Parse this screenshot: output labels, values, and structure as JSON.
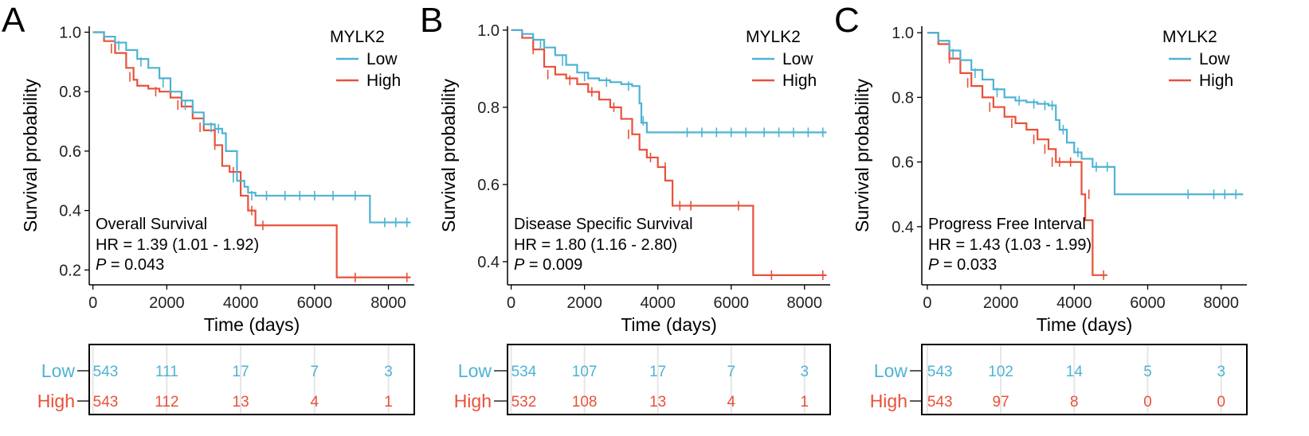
{
  "colors": {
    "low": "#4EB3D3",
    "high": "#E8513A"
  },
  "panels": [
    {
      "letter": "A",
      "legend_title": "MYLK2",
      "legend_low": "Low",
      "legend_high": "High",
      "annotation": {
        "title": "Overall Survival",
        "hr": "HR = 1.39 (1.01 -  1.92)",
        "p_label": "P",
        "p_value": " = 0.043"
      },
      "risk_table": {
        "row_labels": [
          "Low",
          "High"
        ],
        "low": [
          "543",
          "111",
          "17",
          "7",
          "3"
        ],
        "high": [
          "543",
          "112",
          "13",
          "4",
          "1"
        ]
      }
    },
    {
      "letter": "B",
      "legend_title": "MYLK2",
      "legend_low": "Low",
      "legend_high": "High",
      "annotation": {
        "title": "Disease Specific Survival",
        "hr": "HR = 1.80 (1.16 -  2.80)",
        "p_label": "P",
        "p_value": " = 0.009"
      },
      "risk_table": {
        "row_labels": [
          "Low",
          "High"
        ],
        "low": [
          "534",
          "107",
          "17",
          "7",
          "3"
        ],
        "high": [
          "532",
          "108",
          "13",
          "4",
          "1"
        ]
      }
    },
    {
      "letter": "C",
      "legend_title": "MYLK2",
      "legend_low": "Low",
      "legend_high": "High",
      "annotation": {
        "title": "Progress Free Interval",
        "hr": "HR = 1.43 (1.03 -  1.99)",
        "p_label": "P",
        "p_value": " = 0.033"
      },
      "risk_table": {
        "row_labels": [
          "Low",
          "High"
        ],
        "low": [
          "543",
          "102",
          "14",
          "5",
          "3"
        ],
        "high": [
          "543",
          "97",
          "8",
          "0",
          "0"
        ]
      }
    }
  ],
  "chart_data": [
    {
      "type": "line",
      "title": "Overall Survival",
      "xlabel": "Time (days)",
      "ylabel": "Survival probability",
      "xlim": [
        -100,
        8700
      ],
      "ylim": [
        0.15,
        1.02
      ],
      "xticks": [
        0,
        2000,
        4000,
        6000,
        8000
      ],
      "xtick_labels": [
        "0",
        "2000",
        "4000",
        "6000",
        "8000"
      ],
      "yticks": [
        0.2,
        0.4,
        0.6,
        0.8,
        1.0
      ],
      "ytick_labels": [
        "0.2",
        "0.4",
        "0.6",
        "0.8",
        "1.0"
      ],
      "series": [
        {
          "name": "Low",
          "x": [
            0,
            300,
            600,
            900,
            1200,
            1500,
            1800,
            2100,
            2400,
            2700,
            3000,
            3300,
            3500,
            3600,
            3900,
            4100,
            4200,
            4400,
            7500,
            8600
          ],
          "y": [
            1.0,
            0.985,
            0.965,
            0.94,
            0.91,
            0.88,
            0.845,
            0.8,
            0.77,
            0.73,
            0.69,
            0.675,
            0.66,
            0.6,
            0.5,
            0.48,
            0.46,
            0.45,
            0.36,
            0.36
          ],
          "censor_x": [
            700,
            1300,
            1900,
            2500,
            3200,
            3400,
            3800,
            4300,
            4700,
            5200,
            5600,
            6000,
            6500,
            7100,
            7900,
            8200,
            8500
          ],
          "censor_y": [
            0.955,
            0.9,
            0.83,
            0.755,
            0.68,
            0.675,
            0.51,
            0.45,
            0.45,
            0.45,
            0.45,
            0.45,
            0.45,
            0.45,
            0.36,
            0.36,
            0.36
          ]
        },
        {
          "name": "High",
          "x": [
            0,
            300,
            600,
            900,
            1100,
            1200,
            1500,
            1800,
            2100,
            2400,
            2700,
            3000,
            3300,
            3500,
            3700,
            4000,
            4200,
            4400,
            6500,
            6600,
            8600
          ],
          "y": [
            1.0,
            0.97,
            0.93,
            0.88,
            0.84,
            0.82,
            0.81,
            0.8,
            0.78,
            0.75,
            0.71,
            0.67,
            0.62,
            0.55,
            0.53,
            0.45,
            0.4,
            0.35,
            0.35,
            0.175,
            0.175
          ],
          "censor_x": [
            500,
            1000,
            1700,
            2300,
            2900,
            3300,
            3800,
            4300,
            4600,
            7100,
            8500
          ],
          "censor_y": [
            0.945,
            0.85,
            0.8,
            0.755,
            0.68,
            0.62,
            0.53,
            0.4,
            0.35,
            0.175,
            0.175
          ]
        }
      ]
    },
    {
      "type": "line",
      "title": "Disease Specific Survival",
      "xlabel": "Time (days)",
      "ylabel": "Survival probability",
      "xlim": [
        -100,
        8700
      ],
      "ylim": [
        0.34,
        1.01
      ],
      "xticks": [
        0,
        2000,
        4000,
        6000,
        8000
      ],
      "xtick_labels": [
        "0",
        "2000",
        "4000",
        "6000",
        "8000"
      ],
      "yticks": [
        0.4,
        0.6,
        0.8,
        1.0
      ],
      "ytick_labels": [
        "0.4",
        "0.6",
        "0.8",
        "1.0"
      ],
      "series": [
        {
          "name": "Low",
          "x": [
            0,
            300,
            600,
            900,
            1200,
            1500,
            1800,
            2100,
            2400,
            2700,
            3000,
            3300,
            3500,
            3550,
            3700,
            8600
          ],
          "y": [
            1.0,
            0.99,
            0.975,
            0.955,
            0.935,
            0.91,
            0.89,
            0.875,
            0.87,
            0.865,
            0.86,
            0.855,
            0.81,
            0.76,
            0.735,
            0.735
          ],
          "censor_x": [
            800,
            1400,
            2000,
            2600,
            3200,
            3600,
            4800,
            5200,
            5600,
            6000,
            6400,
            6900,
            7300,
            7700,
            8100,
            8500
          ],
          "censor_y": [
            0.96,
            0.92,
            0.88,
            0.865,
            0.855,
            0.765,
            0.735,
            0.735,
            0.735,
            0.735,
            0.735,
            0.735,
            0.735,
            0.735,
            0.735,
            0.735
          ]
        },
        {
          "name": "High",
          "x": [
            0,
            300,
            600,
            900,
            1200,
            1500,
            1800,
            2100,
            2400,
            2700,
            3000,
            3300,
            3500,
            3700,
            4000,
            4200,
            4400,
            6500,
            6600,
            8600
          ],
          "y": [
            1.0,
            0.98,
            0.95,
            0.905,
            0.885,
            0.875,
            0.86,
            0.84,
            0.82,
            0.8,
            0.77,
            0.73,
            0.69,
            0.67,
            0.645,
            0.61,
            0.545,
            0.545,
            0.365,
            0.365
          ],
          "censor_x": [
            600,
            1000,
            1600,
            2200,
            2800,
            3200,
            3800,
            4200,
            4600,
            4900,
            6200,
            7100,
            8500
          ],
          "censor_y": [
            0.95,
            0.885,
            0.87,
            0.84,
            0.8,
            0.73,
            0.67,
            0.645,
            0.545,
            0.545,
            0.545,
            0.365,
            0.365
          ]
        }
      ]
    },
    {
      "type": "line",
      "title": "Progress Free Interval",
      "xlabel": "Time (days)",
      "ylabel": "Survival probability",
      "xlim": [
        -150,
        8700
      ],
      "ylim": [
        0.22,
        1.02
      ],
      "xticks": [
        0,
        2000,
        4000,
        6000,
        8000
      ],
      "xtick_labels": [
        "0",
        "2000",
        "4000",
        "6000",
        "8000"
      ],
      "yticks": [
        0.4,
        0.6,
        0.8,
        1.0
      ],
      "ytick_labels": [
        "0.4",
        "0.6",
        "0.8",
        "1.0"
      ],
      "series": [
        {
          "name": "Low",
          "x": [
            0,
            300,
            600,
            900,
            1200,
            1500,
            1800,
            2100,
            2400,
            2700,
            3000,
            3300,
            3500,
            3600,
            3800,
            4000,
            4200,
            4500,
            5100,
            8600
          ],
          "y": [
            1.0,
            0.975,
            0.945,
            0.915,
            0.885,
            0.855,
            0.825,
            0.8,
            0.79,
            0.785,
            0.78,
            0.775,
            0.73,
            0.7,
            0.66,
            0.63,
            0.61,
            0.585,
            0.5,
            0.5
          ],
          "censor_x": [
            700,
            1300,
            1900,
            2500,
            2900,
            3200,
            3400,
            3700,
            4100,
            4600,
            4900,
            7100,
            7800,
            8100,
            8400
          ],
          "censor_y": [
            0.935,
            0.875,
            0.815,
            0.79,
            0.78,
            0.775,
            0.775,
            0.7,
            0.63,
            0.585,
            0.585,
            0.5,
            0.5,
            0.5,
            0.5
          ]
        },
        {
          "name": "High",
          "x": [
            0,
            300,
            600,
            900,
            1200,
            1500,
            1800,
            2100,
            2400,
            2700,
            3000,
            3300,
            3500,
            3700,
            4200,
            4300,
            4500,
            4900
          ],
          "y": [
            1.0,
            0.965,
            0.92,
            0.875,
            0.835,
            0.8,
            0.77,
            0.74,
            0.72,
            0.7,
            0.67,
            0.64,
            0.6,
            0.6,
            0.5,
            0.42,
            0.25,
            0.25
          ],
          "censor_x": [
            600,
            1100,
            1700,
            2300,
            2900,
            3200,
            3400,
            3600,
            3900,
            4400,
            4800
          ],
          "censor_y": [
            0.92,
            0.845,
            0.77,
            0.72,
            0.67,
            0.64,
            0.6,
            0.6,
            0.6,
            0.5,
            0.25
          ]
        }
      ]
    }
  ]
}
